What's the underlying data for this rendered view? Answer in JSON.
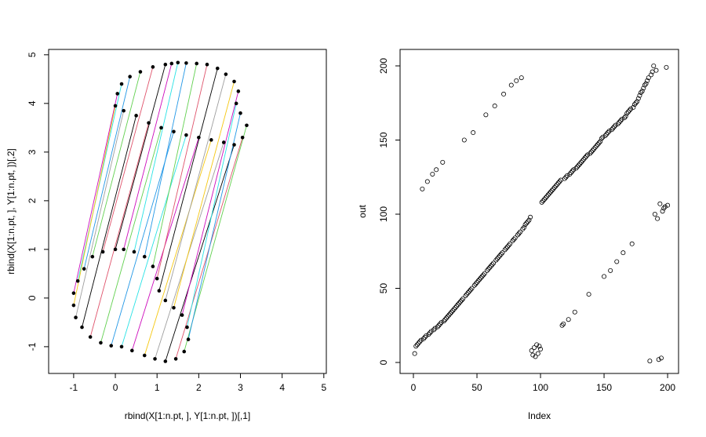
{
  "chart_data": [
    {
      "type": "matching",
      "xlabel": "rbind(X[1:n.pt, ], Y[1:n.pt, ])[,1]",
      "ylabel": "rbind(X[1:n.pt, ], Y[1:n.pt, ])[,2]",
      "xlim": [
        -1.6,
        5.06
      ],
      "ylim": [
        -1.55,
        5.11
      ],
      "xticks": [
        -1,
        0,
        1,
        2,
        3,
        4,
        5
      ],
      "yticks": [
        -1,
        0,
        1,
        2,
        3,
        4,
        5
      ],
      "point_color": "#000000",
      "link_colors": [
        "#000000",
        "#DF536B",
        "#61D04F",
        "#2297E6",
        "#28E2E5",
        "#CD0BBC",
        "#F5C710",
        "#9E9E9E"
      ],
      "from": {
        "x": [
          0,
          -0.3,
          -0.55,
          -0.75,
          -0.9,
          -1,
          -1,
          -0.95,
          -0.8,
          -0.6,
          -0.35,
          -0.1,
          0.15,
          0.4,
          0.7,
          0.95,
          1.2,
          1.45,
          1.65,
          1.75,
          1.72,
          1.6,
          1.4,
          1.2,
          1.05,
          1.0,
          0.9,
          0.7,
          0.45,
          0.2
        ],
        "y": [
          1,
          0.95,
          0.85,
          0.6,
          0.35,
          0.1,
          -0.15,
          -0.4,
          -0.6,
          -0.8,
          -0.92,
          -0.98,
          -1.0,
          -1.08,
          -1.18,
          -1.25,
          -1.3,
          -1.25,
          -1.1,
          -0.85,
          -0.6,
          -0.35,
          -0.2,
          -0.05,
          0.15,
          0.4,
          0.65,
          0.85,
          0.95,
          1.0
        ]
      },
      "to": {
        "x": [
          1.2,
          0.9,
          0.6,
          0.35,
          0.15,
          0.05,
          0.0,
          0.2,
          0.5,
          0.8,
          1.1,
          1.4,
          1.7,
          2.0,
          2.3,
          2.6,
          2.85,
          3.05,
          3.15,
          3.0,
          2.9,
          2.95,
          2.85,
          2.65,
          2.45,
          2.2,
          1.95,
          1.7,
          1.5,
          1.35
        ],
        "y": [
          4.8,
          4.75,
          4.65,
          4.55,
          4.4,
          4.2,
          3.95,
          3.85,
          3.75,
          3.6,
          3.5,
          3.42,
          3.35,
          3.3,
          3.25,
          3.2,
          3.15,
          3.3,
          3.55,
          3.8,
          4.0,
          4.25,
          4.45,
          4.6,
          4.72,
          4.8,
          4.82,
          4.83,
          4.84,
          4.82
        ]
      }
    },
    {
      "type": "scatter",
      "xlabel": "Index",
      "ylabel": "out",
      "xlim": [
        -10.5,
        208.6
      ],
      "ylim": [
        -7.4,
        211.1
      ],
      "xticks": [
        0,
        50,
        100,
        150,
        200
      ],
      "yticks": [
        0,
        50,
        100,
        150,
        200
      ],
      "color": "#000000",
      "x": [
        1,
        2,
        3,
        4,
        5,
        6,
        7,
        8,
        9,
        10,
        11,
        12,
        13,
        14,
        15,
        16,
        17,
        18,
        19,
        20,
        21,
        22,
        23,
        24,
        25,
        26,
        27,
        28,
        29,
        30,
        31,
        32,
        33,
        34,
        35,
        36,
        37,
        38,
        39,
        40,
        41,
        42,
        43,
        44,
        45,
        46,
        47,
        48,
        49,
        50,
        51,
        52,
        53,
        54,
        55,
        56,
        57,
        58,
        59,
        60,
        61,
        62,
        63,
        64,
        65,
        66,
        67,
        68,
        69,
        70,
        71,
        72,
        73,
        74,
        75,
        76,
        77,
        78,
        79,
        80,
        81,
        82,
        83,
        84,
        85,
        86,
        87,
        88,
        89,
        90,
        91,
        92,
        93,
        94,
        95,
        96,
        97,
        98,
        99,
        100,
        101,
        102,
        103,
        104,
        105,
        106,
        107,
        108,
        109,
        110,
        111,
        112,
        113,
        114,
        115,
        116,
        117,
        118,
        119,
        120,
        121,
        122,
        123,
        124,
        125,
        126,
        127,
        128,
        129,
        130,
        131,
        132,
        133,
        134,
        135,
        136,
        137,
        138,
        139,
        140,
        141,
        142,
        143,
        144,
        145,
        146,
        147,
        148,
        149,
        150,
        151,
        152,
        153,
        154,
        155,
        156,
        157,
        158,
        159,
        160,
        161,
        162,
        163,
        164,
        165,
        166,
        167,
        168,
        169,
        170,
        171,
        172,
        173,
        174,
        175,
        176,
        177,
        178,
        179,
        180,
        181,
        182,
        183,
        184,
        185,
        186,
        187,
        188,
        189,
        190,
        191,
        192,
        193,
        194,
        195,
        196,
        197,
        198,
        199,
        200
      ],
      "values": [
        6,
        11,
        12,
        13,
        14,
        15,
        117,
        16,
        17,
        18,
        122,
        19,
        20,
        21,
        127,
        22,
        23,
        130,
        24,
        25,
        26,
        27,
        135,
        28,
        29,
        30,
        31,
        32,
        33,
        34,
        35,
        36,
        37,
        38,
        39,
        40,
        41,
        42,
        43,
        150,
        45,
        46,
        47,
        48,
        49,
        50,
        155,
        52,
        53,
        54,
        55,
        56,
        57,
        58,
        59,
        60,
        167,
        62,
        63,
        64,
        65,
        66,
        67,
        173,
        69,
        70,
        71,
        72,
        73,
        74,
        181,
        76,
        77,
        78,
        79,
        80,
        187,
        82,
        83,
        84,
        190,
        86,
        87,
        88,
        192,
        90,
        91,
        93,
        94,
        95,
        96,
        98,
        8,
        5,
        10,
        4,
        12,
        6,
        11,
        9,
        108,
        109,
        110,
        111,
        112,
        113,
        114,
        115,
        116,
        117,
        118,
        119,
        120,
        121,
        122,
        123,
        25,
        26,
        124,
        125,
        126,
        29,
        127,
        128,
        129,
        130,
        34,
        131,
        132,
        133,
        134,
        135,
        136,
        137,
        138,
        139,
        140,
        46,
        141,
        142,
        143,
        144,
        145,
        146,
        147,
        148,
        149,
        151,
        152,
        58,
        153,
        154,
        155,
        156,
        62,
        157,
        158,
        159,
        160,
        68,
        161,
        162,
        163,
        164,
        74,
        165,
        166,
        168,
        169,
        170,
        171,
        80,
        172,
        174,
        175,
        176,
        178,
        180,
        182,
        183,
        185,
        187,
        188,
        190,
        192,
        1,
        194,
        196,
        200,
        100,
        197,
        97,
        2,
        107,
        3,
        102,
        104,
        105,
        199,
        106
      ]
    }
  ]
}
